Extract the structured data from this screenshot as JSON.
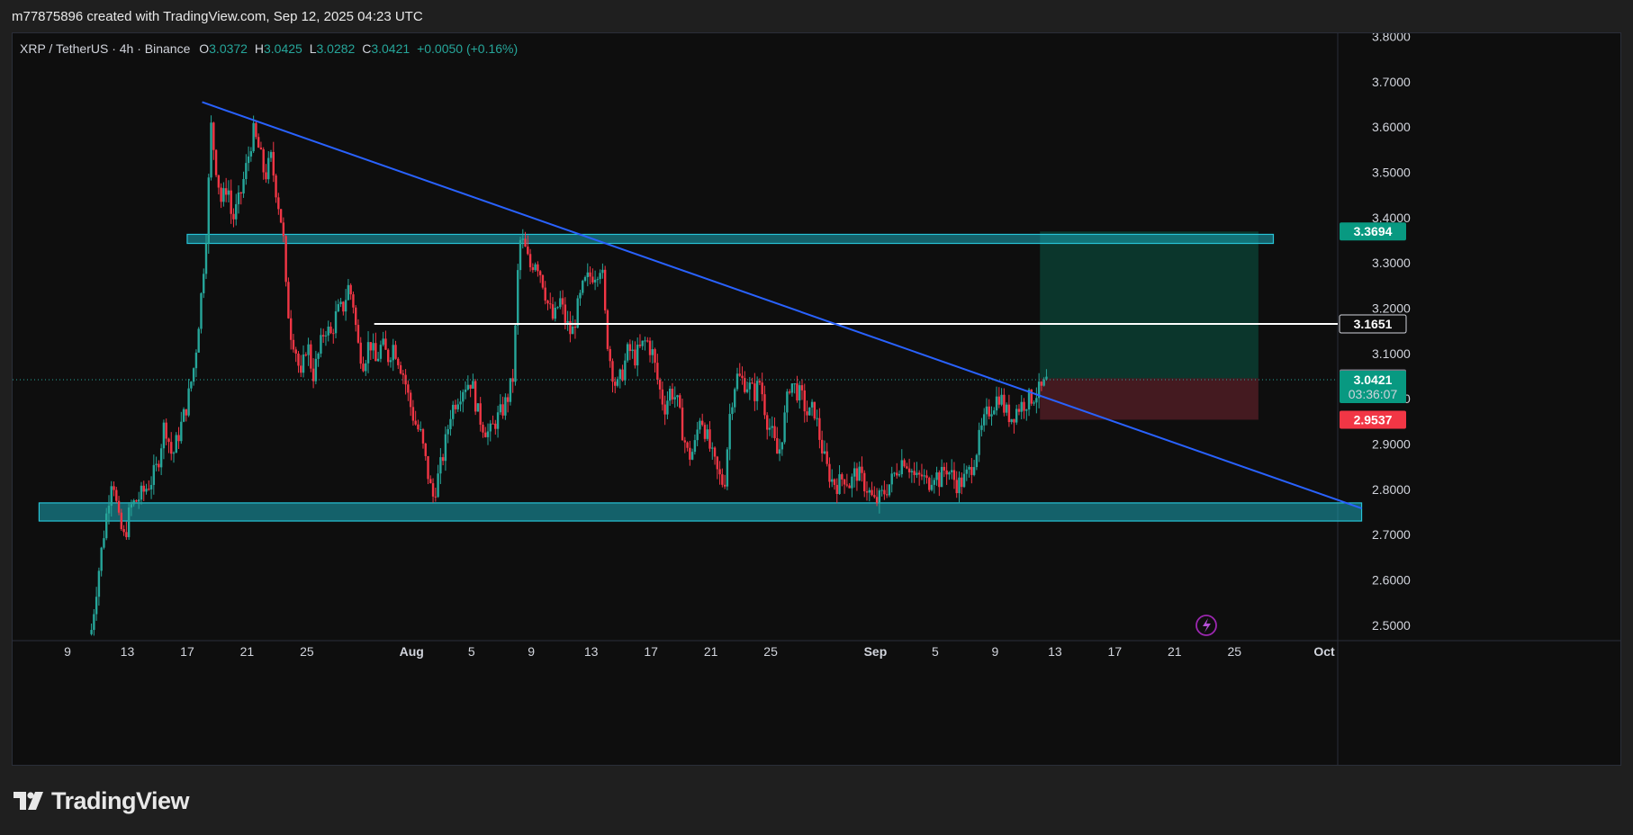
{
  "header": {
    "credit": "m77875896 created with TradingView.com, Sep 12, 2025 04:23 UTC"
  },
  "legend": {
    "symbol": "XRP / TetherUS · 4h · Binance",
    "open_label": "O",
    "open": "3.0372",
    "high_label": "H",
    "high": "3.0425",
    "low_label": "L",
    "low": "3.0282",
    "close_label": "C",
    "close": "3.0421",
    "change": "+0.0050 (+0.16%)"
  },
  "footer": {
    "brand": "TradingView"
  },
  "colors": {
    "up": "#26a69a",
    "down": "#f23645",
    "zone": "#1aa6b7",
    "trend": "#2962ff",
    "target": "#0b3d31",
    "stop": "#4a1c22",
    "bg": "#0e0e0e"
  },
  "chart_data": {
    "type": "candlestick",
    "interval": "4h",
    "y_axis": {
      "side": "right",
      "ylim": [
        2.48,
        3.82
      ],
      "ticks": [
        "2.5000",
        "2.6000",
        "2.7000",
        "2.8000",
        "2.9000",
        "3.0000",
        "3.1000",
        "3.2000",
        "3.3000",
        "3.4000",
        "3.5000",
        "3.6000",
        "3.7000",
        "3.8000"
      ]
    },
    "x_axis": {
      "start_date": "Jul 9",
      "end_date": "Oct 1",
      "tick_labels": [
        {
          "label": "9",
          "day": 0
        },
        {
          "label": "13",
          "day": 4
        },
        {
          "label": "17",
          "day": 8
        },
        {
          "label": "21",
          "day": 12
        },
        {
          "label": "25",
          "day": 16
        },
        {
          "label": "Aug",
          "day": 23
        },
        {
          "label": "5",
          "day": 27
        },
        {
          "label": "9",
          "day": 31
        },
        {
          "label": "13",
          "day": 35
        },
        {
          "label": "17",
          "day": 39
        },
        {
          "label": "21",
          "day": 43
        },
        {
          "label": "25",
          "day": 47
        },
        {
          "label": "Sep",
          "day": 54
        },
        {
          "label": "5",
          "day": 58
        },
        {
          "label": "9",
          "day": 62
        },
        {
          "label": "13",
          "day": 66
        },
        {
          "label": "17",
          "day": 70
        },
        {
          "label": "21",
          "day": 74
        },
        {
          "label": "25",
          "day": 78
        },
        {
          "label": "Oct",
          "day": 84
        }
      ]
    },
    "close_path": [
      [
        1.6,
        2.49
      ],
      [
        2.0,
        2.6
      ],
      [
        2.5,
        2.72
      ],
      [
        3.0,
        2.84
      ],
      [
        3.4,
        2.73
      ],
      [
        3.8,
        2.69
      ],
      [
        4.2,
        2.76
      ],
      [
        5,
        2.79
      ],
      [
        5.6,
        2.82
      ],
      [
        6,
        2.85
      ],
      [
        6.5,
        2.95
      ],
      [
        7,
        2.87
      ],
      [
        7.5,
        2.93
      ],
      [
        8,
        2.99
      ],
      [
        8.5,
        3.08
      ],
      [
        9,
        3.25
      ],
      [
        9.3,
        3.38
      ],
      [
        9.6,
        3.6
      ],
      [
        9.9,
        3.52
      ],
      [
        10.3,
        3.43
      ],
      [
        10.7,
        3.48
      ],
      [
        11,
        3.39
      ],
      [
        11.5,
        3.44
      ],
      [
        12,
        3.52
      ],
      [
        12.4,
        3.59
      ],
      [
        12.8,
        3.55
      ],
      [
        13.2,
        3.49
      ],
      [
        13.6,
        3.53
      ],
      [
        14,
        3.45
      ],
      [
        14.4,
        3.37
      ],
      [
        14.6,
        3.24
      ],
      [
        14.9,
        3.15
      ],
      [
        15.2,
        3.12
      ],
      [
        15.6,
        3.04
      ],
      [
        16,
        3.13
      ],
      [
        16.4,
        3.05
      ],
      [
        16.8,
        3.1
      ],
      [
        17.2,
        3.16
      ],
      [
        17.6,
        3.14
      ],
      [
        18,
        3.19
      ],
      [
        18.4,
        3.2
      ],
      [
        18.8,
        3.25
      ],
      [
        19.1,
        3.21
      ],
      [
        19.4,
        3.12
      ],
      [
        19.8,
        3.08
      ],
      [
        20.2,
        3.13
      ],
      [
        20.6,
        3.08
      ],
      [
        21,
        3.12
      ],
      [
        21.4,
        3.09
      ],
      [
        21.8,
        3.12
      ],
      [
        22.2,
        3.08
      ],
      [
        22.5,
        3.05
      ],
      [
        22.8,
        3.0
      ],
      [
        23.2,
        2.95
      ],
      [
        23.6,
        2.92
      ],
      [
        24,
        2.85
      ],
      [
        24.4,
        2.78
      ],
      [
        24.8,
        2.83
      ],
      [
        25.2,
        2.89
      ],
      [
        25.6,
        2.97
      ],
      [
        26,
        3.0
      ],
      [
        26.5,
        3.03
      ],
      [
        27,
        3.04
      ],
      [
        27.4,
        2.97
      ],
      [
        27.8,
        2.94
      ],
      [
        28.2,
        2.92
      ],
      [
        28.6,
        2.95
      ],
      [
        29,
        2.97
      ],
      [
        29.4,
        3.0
      ],
      [
        29.8,
        3.05
      ],
      [
        30.2,
        3.35
      ],
      [
        30.5,
        3.34
      ],
      [
        30.9,
        3.29
      ],
      [
        31.3,
        3.31
      ],
      [
        31.7,
        3.27
      ],
      [
        32.1,
        3.21
      ],
      [
        32.5,
        3.17
      ],
      [
        32.9,
        3.22
      ],
      [
        33.3,
        3.17
      ],
      [
        33.7,
        3.14
      ],
      [
        34.1,
        3.2
      ],
      [
        34.5,
        3.25
      ],
      [
        34.9,
        3.27
      ],
      [
        35.3,
        3.28
      ],
      [
        35.7,
        3.3
      ],
      [
        36,
        3.15
      ],
      [
        36.3,
        3.08
      ],
      [
        36.7,
        3.02
      ],
      [
        37.1,
        3.06
      ],
      [
        37.5,
        3.11
      ],
      [
        37.9,
        3.09
      ],
      [
        38.3,
        3.11
      ],
      [
        38.7,
        3.13
      ],
      [
        39.1,
        3.1
      ],
      [
        39.5,
        3.03
      ],
      [
        39.9,
        2.98
      ],
      [
        40.3,
        3.02
      ],
      [
        40.7,
        3.0
      ],
      [
        41.1,
        2.93
      ],
      [
        41.5,
        2.87
      ],
      [
        41.9,
        2.89
      ],
      [
        42.3,
        2.97
      ],
      [
        42.7,
        2.92
      ],
      [
        43.1,
        2.87
      ],
      [
        43.5,
        2.83
      ],
      [
        43.9,
        2.81
      ],
      [
        44.3,
        2.98
      ],
      [
        44.7,
        3.05
      ],
      [
        45.1,
        3.04
      ],
      [
        45.5,
        3.03
      ],
      [
        45.9,
        3.01
      ],
      [
        46.3,
        3.04
      ],
      [
        46.7,
        2.96
      ],
      [
        47.1,
        2.92
      ],
      [
        47.5,
        2.87
      ],
      [
        47.9,
        2.95
      ],
      [
        48.3,
        3.04
      ],
      [
        48.7,
        3.02
      ],
      [
        49.1,
        3.0
      ],
      [
        49.5,
        2.96
      ],
      [
        49.9,
        2.98
      ],
      [
        50.3,
        2.91
      ],
      [
        50.7,
        2.85
      ],
      [
        51.1,
        2.82
      ],
      [
        51.5,
        2.81
      ],
      [
        51.9,
        2.83
      ],
      [
        52.3,
        2.81
      ],
      [
        52.7,
        2.84
      ],
      [
        53.1,
        2.82
      ],
      [
        53.5,
        2.8
      ],
      [
        53.9,
        2.77
      ],
      [
        54.3,
        2.78
      ],
      [
        54.7,
        2.8
      ],
      [
        55.1,
        2.82
      ],
      [
        55.5,
        2.85
      ],
      [
        55.9,
        2.87
      ],
      [
        56.3,
        2.85
      ],
      [
        56.7,
        2.82
      ],
      [
        57.1,
        2.83
      ],
      [
        57.5,
        2.81
      ],
      [
        57.9,
        2.84
      ],
      [
        58.3,
        2.82
      ],
      [
        58.7,
        2.85
      ],
      [
        59.1,
        2.83
      ],
      [
        59.5,
        2.81
      ],
      [
        59.9,
        2.82
      ],
      [
        60.3,
        2.84
      ],
      [
        60.7,
        2.88
      ],
      [
        61.1,
        2.93
      ],
      [
        61.5,
        2.97
      ],
      [
        61.9,
        2.99
      ],
      [
        62.3,
        3.01
      ],
      [
        62.7,
        2.97
      ],
      [
        63.1,
        2.96
      ],
      [
        63.5,
        2.98
      ],
      [
        63.9,
        2.99
      ],
      [
        64.3,
        3.0
      ],
      [
        64.7,
        3.01
      ],
      [
        65.1,
        3.02
      ],
      [
        65.5,
        3.04
      ]
    ],
    "zones": [
      {
        "name": "resistance",
        "from_day": 8.0,
        "to_day": 80.6,
        "low": 3.343,
        "high": 3.363
      },
      {
        "name": "support",
        "from_day": -1.9,
        "to_day": 86.5,
        "low": 2.73,
        "high": 2.77
      }
    ],
    "trendline": {
      "from": [
        9.0,
        3.655
      ],
      "to": [
        86.5,
        2.758
      ]
    },
    "level_line": {
      "from_day": 20.5,
      "price": 3.1651
    },
    "position": {
      "entry": 3.045,
      "target": 3.3694,
      "stop": 2.9537,
      "from_day": 65.0,
      "to_day": 79.6
    },
    "price_tags": [
      {
        "value": "3.3694",
        "price": 3.3694,
        "kind": "target"
      },
      {
        "value": "3.1651",
        "price": 3.1651,
        "kind": "level"
      },
      {
        "value": "3.0450",
        "price": 3.045,
        "kind": "entry"
      },
      {
        "value": "3.0421",
        "price": 3.0421,
        "kind": "last",
        "countdown": "03:36:07"
      },
      {
        "value": "2.9537",
        "price": 2.9537,
        "kind": "stop"
      }
    ],
    "last_price": 3.0421
  }
}
